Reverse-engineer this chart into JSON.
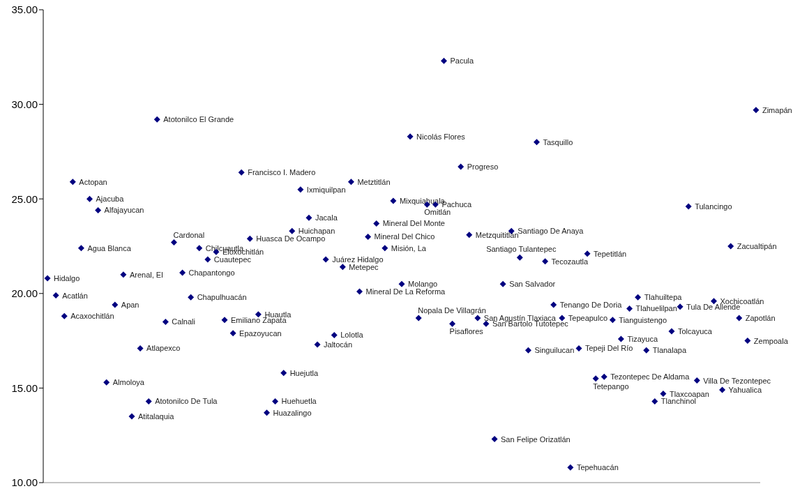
{
  "chart_data": {
    "type": "scatter",
    "tick_labels": "y",
    "marker": "diamond",
    "grid": false,
    "legend": false,
    "categories": [
      null,
      null,
      null,
      null,
      null,
      null,
      null,
      null,
      null,
      null,
      null,
      null,
      null,
      null,
      null,
      null,
      null,
      null,
      null,
      null,
      null,
      null,
      null,
      null,
      null,
      null,
      null,
      null,
      null,
      null,
      null,
      null,
      null,
      null,
      null,
      null,
      null,
      null,
      null,
      null,
      null,
      null,
      null,
      null,
      null,
      null,
      null,
      null,
      null,
      null,
      null,
      null,
      null,
      null,
      null,
      null,
      null,
      null,
      null,
      null,
      null,
      null,
      null,
      null,
      null,
      null,
      null,
      null,
      null,
      null,
      null,
      null,
      null,
      null,
      null,
      null,
      null,
      null,
      null,
      null,
      null,
      null,
      null,
      null,
      null
    ],
    "series": [
      {
        "color": "#000080",
        "values": [
          20.8,
          19.9,
          18.8,
          25.9,
          22.4,
          25.0,
          24.4,
          15.3,
          19.4,
          21.0,
          13.5,
          17.1,
          14.3,
          29.2,
          18.5,
          22.7,
          21.1,
          19.8,
          22.4,
          21.8,
          22.2,
          18.6,
          17.9,
          26.4,
          22.9,
          18.9,
          13.7,
          14.3,
          15.8,
          23.3,
          25.5,
          24.0,
          17.3,
          21.8,
          17.8,
          21.4,
          25.9,
          20.1,
          23.0,
          23.7,
          22.4,
          24.9,
          20.5,
          28.3,
          18.7,
          24.7,
          24.7,
          32.3,
          18.4,
          26.7,
          23.1,
          18.7,
          18.4,
          12.3,
          20.5,
          23.3,
          21.9,
          17.0,
          28.0,
          21.7,
          19.4,
          18.7,
          10.8,
          17.1,
          22.1,
          15.5,
          15.6,
          18.6,
          17.6,
          19.2,
          19.8,
          17.0,
          14.3,
          14.7,
          18.0,
          19.3,
          24.6,
          15.4,
          null,
          19.6,
          14.9,
          22.5,
          18.7,
          17.5,
          29.7
        ],
        "value_labels": [
          "Hidalgo",
          "Acatlán",
          "Acaxochitlán",
          "Actopan",
          "Agua Blanca",
          "Ajacuba",
          "Alfajayucan",
          "Almoloya",
          "Apan",
          "Arenal, El",
          "Atitalaquia",
          "Atlapexco",
          "Atotonilco De Tula",
          "Atotonilco El Grande",
          "Calnali",
          "Cardonal",
          "Chapantongo",
          "Chapulhuacán",
          "Chilcuautla",
          "Cuautepec",
          "Eloxochitlán",
          "Emiliano Zapata",
          "Epazoyucan",
          "Francisco I. Madero",
          "Huasca De Ocampo",
          "Huautla",
          "Huazalingo",
          "Huehuetla",
          "Huejutla",
          "Huichapan",
          "Ixmiquilpan",
          "Jacala",
          "Jaltocán",
          "Juárez Hidalgo",
          "Lolotla",
          "Metepec",
          "Metztitlán",
          "Mineral De La Reforma",
          "Mineral Del Chico",
          "Mineral Del Monte",
          "Misión, La",
          "Mixquiahuala",
          "Molango",
          "Nicolás Flores",
          "Nopala De Villagrán",
          "Omitlán",
          "Pachuca",
          "Pacula",
          "Pisaflores",
          "Progreso",
          "Metzquititlán",
          "San Agustín Tlaxiaca",
          "San Bartolo Tutotepec",
          "San Felipe Orizatlán",
          "San Salvador",
          "Santiago De Anaya",
          "Santiago Tulantepec",
          "Singuilucan",
          "Tasquillo",
          "Tecozautla",
          "Tenango De Doria",
          "Tepeapulco",
          "Tepehuacán",
          "Tepeji Del Río",
          "Tepetitlán",
          "Tetepango",
          "Tezontepec De Aldama",
          "Tianguistengo",
          "Tizayuca",
          "Tlahuelilpan",
          "Tlahuiltepa",
          "Tlanalapa",
          "Tlanchinol",
          "Tlaxcoapan",
          "Tolcayuca",
          "Tula De Allende",
          "Tulancingo",
          "Villa De Tezontepec",
          null,
          "Xochicoatlán",
          "Yahualica",
          "Zacualtipán",
          "Zapotlán",
          "Zempoala",
          "Zimapán"
        ]
      }
    ],
    "ylim": [
      10,
      35
    ],
    "yticks": [
      {
        "value": 10,
        "label": "10.00"
      },
      {
        "value": 15,
        "label": "15.00"
      },
      {
        "value": 20,
        "label": "20.00"
      },
      {
        "value": 25,
        "label": "25.00"
      },
      {
        "value": 30,
        "label": "30.00"
      },
      {
        "value": 35,
        "label": "35.00"
      }
    ]
  }
}
